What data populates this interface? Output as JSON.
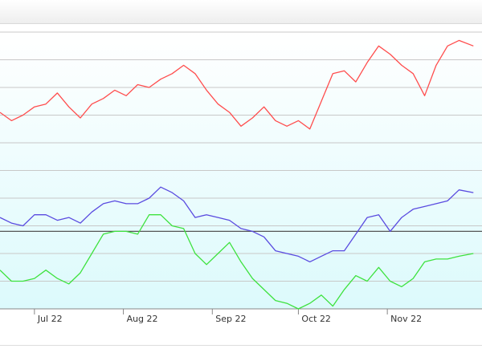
{
  "chart_data": {
    "type": "line",
    "x_ticks": [
      "Jul 22",
      "Aug 22",
      "Sep 22",
      "Oct 22",
      "Nov 22"
    ],
    "x_range": [
      "2022-06-19",
      "2022-12-04"
    ],
    "y_range": [
      0,
      100
    ],
    "baseline_y": 28,
    "grid": "horizontal",
    "colors": {
      "red": "#ff4d4d",
      "blue": "#5a4be0",
      "green": "#3ee23e",
      "baseline": "#555555",
      "grid": "#c8c8c8"
    },
    "series": [
      {
        "color": "red",
        "points": [
          [
            "2022-06-19",
            71
          ],
          [
            "2022-06-23",
            68
          ],
          [
            "2022-06-27",
            70
          ],
          [
            "2022-07-01",
            73
          ],
          [
            "2022-07-05",
            74
          ],
          [
            "2022-07-09",
            78
          ],
          [
            "2022-07-13",
            73
          ],
          [
            "2022-07-17",
            69
          ],
          [
            "2022-07-21",
            74
          ],
          [
            "2022-07-25",
            76
          ],
          [
            "2022-07-29",
            79
          ],
          [
            "2022-08-02",
            77
          ],
          [
            "2022-08-06",
            81
          ],
          [
            "2022-08-10",
            80
          ],
          [
            "2022-08-14",
            83
          ],
          [
            "2022-08-18",
            85
          ],
          [
            "2022-08-22",
            88
          ],
          [
            "2022-08-26",
            85
          ],
          [
            "2022-08-30",
            79
          ],
          [
            "2022-09-03",
            74
          ],
          [
            "2022-09-07",
            71
          ],
          [
            "2022-09-11",
            66
          ],
          [
            "2022-09-15",
            69
          ],
          [
            "2022-09-19",
            73
          ],
          [
            "2022-09-23",
            68
          ],
          [
            "2022-09-27",
            66
          ],
          [
            "2022-10-01",
            68
          ],
          [
            "2022-10-05",
            65
          ],
          [
            "2022-10-09",
            75
          ],
          [
            "2022-10-13",
            85
          ],
          [
            "2022-10-17",
            86
          ],
          [
            "2022-10-21",
            82
          ],
          [
            "2022-10-25",
            89
          ],
          [
            "2022-10-29",
            95
          ],
          [
            "2022-11-02",
            92
          ],
          [
            "2022-11-06",
            88
          ],
          [
            "2022-11-10",
            85
          ],
          [
            "2022-11-14",
            77
          ],
          [
            "2022-11-18",
            88
          ],
          [
            "2022-11-22",
            95
          ],
          [
            "2022-11-26",
            97
          ],
          [
            "2022-12-01",
            95
          ]
        ]
      },
      {
        "color": "blue",
        "points": [
          [
            "2022-06-19",
            33
          ],
          [
            "2022-06-23",
            31
          ],
          [
            "2022-06-27",
            30
          ],
          [
            "2022-07-01",
            34
          ],
          [
            "2022-07-05",
            34
          ],
          [
            "2022-07-09",
            32
          ],
          [
            "2022-07-13",
            33
          ],
          [
            "2022-07-17",
            31
          ],
          [
            "2022-07-21",
            35
          ],
          [
            "2022-07-25",
            38
          ],
          [
            "2022-07-29",
            39
          ],
          [
            "2022-08-02",
            38
          ],
          [
            "2022-08-06",
            38
          ],
          [
            "2022-08-10",
            40
          ],
          [
            "2022-08-14",
            44
          ],
          [
            "2022-08-18",
            42
          ],
          [
            "2022-08-22",
            39
          ],
          [
            "2022-08-26",
            33
          ],
          [
            "2022-08-30",
            34
          ],
          [
            "2022-09-03",
            33
          ],
          [
            "2022-09-07",
            32
          ],
          [
            "2022-09-11",
            29
          ],
          [
            "2022-09-15",
            28
          ],
          [
            "2022-09-19",
            26
          ],
          [
            "2022-09-23",
            21
          ],
          [
            "2022-09-27",
            20
          ],
          [
            "2022-10-01",
            19
          ],
          [
            "2022-10-05",
            17
          ],
          [
            "2022-10-09",
            19
          ],
          [
            "2022-10-13",
            21
          ],
          [
            "2022-10-17",
            21
          ],
          [
            "2022-10-21",
            27
          ],
          [
            "2022-10-25",
            33
          ],
          [
            "2022-10-29",
            34
          ],
          [
            "2022-11-02",
            28
          ],
          [
            "2022-11-06",
            33
          ],
          [
            "2022-11-10",
            36
          ],
          [
            "2022-11-14",
            37
          ],
          [
            "2022-11-18",
            38
          ],
          [
            "2022-11-22",
            39
          ],
          [
            "2022-11-26",
            43
          ],
          [
            "2022-12-01",
            42
          ]
        ]
      },
      {
        "color": "green",
        "points": [
          [
            "2022-06-19",
            14
          ],
          [
            "2022-06-23",
            10
          ],
          [
            "2022-06-27",
            10
          ],
          [
            "2022-07-01",
            11
          ],
          [
            "2022-07-05",
            14
          ],
          [
            "2022-07-09",
            11
          ],
          [
            "2022-07-13",
            9
          ],
          [
            "2022-07-17",
            13
          ],
          [
            "2022-07-21",
            20
          ],
          [
            "2022-07-25",
            27
          ],
          [
            "2022-07-29",
            28
          ],
          [
            "2022-08-02",
            28
          ],
          [
            "2022-08-06",
            27
          ],
          [
            "2022-08-10",
            34
          ],
          [
            "2022-08-14",
            34
          ],
          [
            "2022-08-18",
            30
          ],
          [
            "2022-08-22",
            29
          ],
          [
            "2022-08-26",
            20
          ],
          [
            "2022-08-30",
            16
          ],
          [
            "2022-09-03",
            20
          ],
          [
            "2022-09-07",
            24
          ],
          [
            "2022-09-11",
            17
          ],
          [
            "2022-09-15",
            11
          ],
          [
            "2022-09-19",
            7
          ],
          [
            "2022-09-23",
            3
          ],
          [
            "2022-09-27",
            2
          ],
          [
            "2022-10-01",
            0
          ],
          [
            "2022-10-05",
            2
          ],
          [
            "2022-10-09",
            5
          ],
          [
            "2022-10-13",
            1
          ],
          [
            "2022-10-17",
            7
          ],
          [
            "2022-10-21",
            12
          ],
          [
            "2022-10-25",
            10
          ],
          [
            "2022-10-29",
            15
          ],
          [
            "2022-11-02",
            10
          ],
          [
            "2022-11-06",
            8
          ],
          [
            "2022-11-10",
            11
          ],
          [
            "2022-11-14",
            17
          ],
          [
            "2022-11-18",
            18
          ],
          [
            "2022-11-22",
            18
          ],
          [
            "2022-11-26",
            19
          ],
          [
            "2022-12-01",
            20
          ]
        ]
      }
    ]
  }
}
